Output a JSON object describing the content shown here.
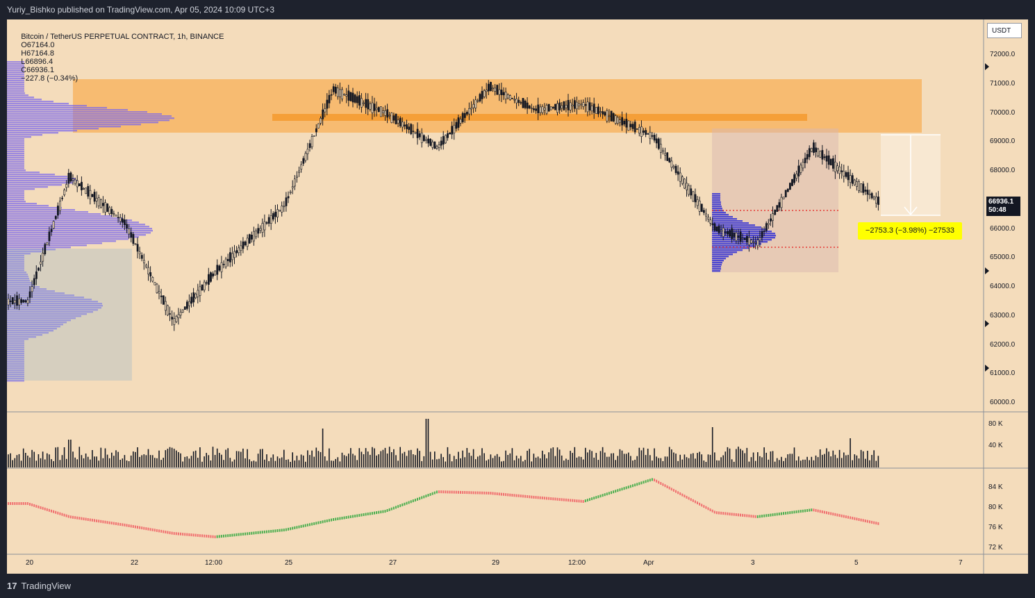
{
  "header": {
    "text": "Yuriy_Bishko published on TradingView.com, Apr 05, 2024 10:09 UTC+3"
  },
  "legend": {
    "symbol": "Bitcoin / TetherUS PERPETUAL CONTRACT, 1h, BINANCE",
    "open": "O67164.0",
    "high": "H67164.8",
    "low": "L66896.4",
    "close": "C66936.1",
    "change": "−227.8 (−0.34%)"
  },
  "currency_button": "USDT",
  "current_price": {
    "price": "66936.1",
    "countdown": "50:48"
  },
  "measure": {
    "text": "−2753.3 (−3.98%) −27533"
  },
  "price_axis": [
    "72000.0",
    "71000.0",
    "70000.0",
    "69000.0",
    "68000.0",
    "67000.0",
    "66000.0",
    "65000.0",
    "64000.0",
    "63000.0",
    "62000.0",
    "61000.0",
    "60000.0"
  ],
  "volume_axis": [
    "80 K",
    "40 K"
  ],
  "indicator_axis": [
    "84 K",
    "80 K",
    "76 K",
    "72 K"
  ],
  "time_axis": [
    "20",
    "22",
    "12:00",
    "25",
    "27",
    "29",
    "12:00",
    "Apr",
    "3",
    "5",
    "7"
  ],
  "footer": {
    "brand": "TradingView",
    "logo": "17"
  },
  "colors": {
    "background": "#f4dcbb",
    "zone": "#f7b35f",
    "profile_up": "#7b68ee",
    "profile_down": "#9fb8c8",
    "candle": "#131722",
    "range_red": "#e53935"
  },
  "chart_data": {
    "type": "line",
    "title": "Bitcoin / TetherUS PERPETUAL CONTRACT, 1h, BINANCE",
    "ylim": [
      59800,
      72900
    ],
    "x": [
      "20",
      "21",
      "22",
      "23",
      "24",
      "25",
      "26",
      "27",
      "28",
      "29",
      "30",
      "31",
      "Apr 1",
      "2",
      "3",
      "4",
      "5"
    ],
    "series": [
      {
        "name": "",
        "values": [
          63500,
          67800,
          66200,
          62800,
          64500,
          66800,
          70800,
          70000,
          68800,
          70900,
          70100,
          70300,
          69200,
          66000,
          65500,
          68800,
          66936
        ]
      }
    ]
  }
}
